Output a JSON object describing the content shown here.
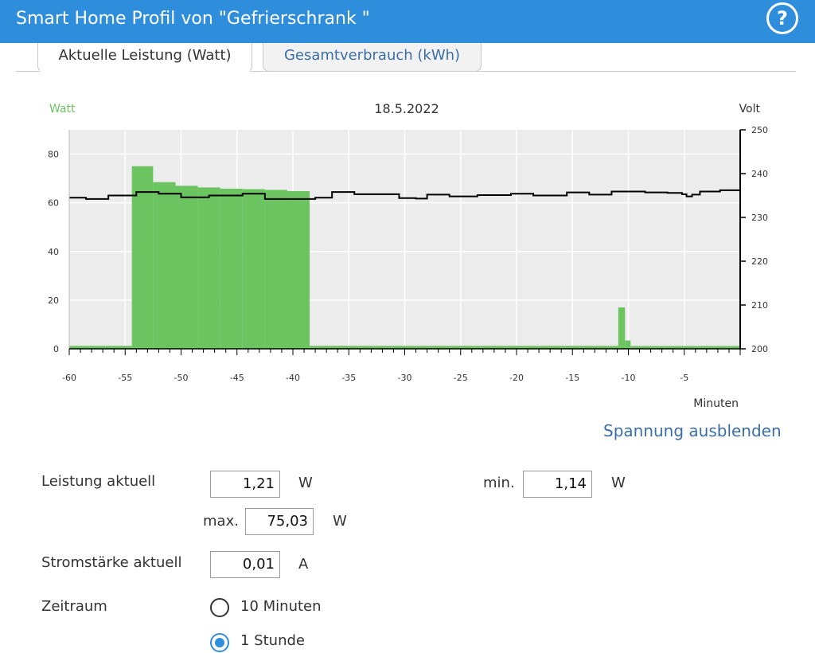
{
  "header": {
    "title": "Smart Home Profil von \"Gefrierschrank \"",
    "help_label": "?"
  },
  "tabs": [
    {
      "label": "Aktuelle Leistung (Watt)",
      "active": true
    },
    {
      "label": "Gesamtverbrauch (kWh)",
      "active": false
    }
  ],
  "colors": {
    "header": "#2f8edb",
    "bars": "#6cc461",
    "voltage_line": "#000000",
    "link": "#3a6ea8",
    "plot_bg": "#ececec"
  },
  "chart_data": {
    "type": "bar",
    "title": "18.5.2022",
    "ylabel": "Watt",
    "ylabel_right": "Volt",
    "xlabel": "Minuten",
    "xlim": [
      -60,
      0
    ],
    "ylim": [
      0,
      90
    ],
    "ylim_right": [
      200,
      250
    ],
    "x_ticks": [
      -60,
      -55,
      -50,
      -45,
      -40,
      -35,
      -30,
      -25,
      -20,
      -15,
      -10,
      -5
    ],
    "y_ticks": [
      0,
      20,
      40,
      60,
      80
    ],
    "y_ticks_right": [
      200,
      210,
      220,
      230,
      240,
      250
    ],
    "grid": true,
    "series": [
      {
        "name": "Watt",
        "type": "bar",
        "bars": [
          [
            -60,
            -54.4,
            1.2
          ],
          [
            -54.4,
            -52.5,
            75.03
          ],
          [
            -52.5,
            -50.5,
            68.5
          ],
          [
            -50.5,
            -48.5,
            67
          ],
          [
            -48.5,
            -46.5,
            66.3
          ],
          [
            -46.5,
            -44.5,
            65.8
          ],
          [
            -44.5,
            -42.5,
            65.6
          ],
          [
            -42.5,
            -40.5,
            65.3
          ],
          [
            -40.5,
            -38.5,
            64.8
          ],
          [
            -38.5,
            -10.9,
            1.21
          ],
          [
            -10.9,
            -10.3,
            17
          ],
          [
            -10.3,
            -9.8,
            3.4
          ],
          [
            -9.8,
            0,
            1.14
          ]
        ]
      },
      {
        "name": "Volt",
        "type": "step-line",
        "axis": "right",
        "points": [
          [
            -60,
            234.5
          ],
          [
            -58.5,
            234.2
          ],
          [
            -56.5,
            235
          ],
          [
            -54,
            235.8
          ],
          [
            -52,
            235.4
          ],
          [
            -50,
            234.6
          ],
          [
            -47.5,
            235
          ],
          [
            -44.5,
            235.4
          ],
          [
            -42.5,
            234.2
          ],
          [
            -39.2,
            234.2
          ],
          [
            -38,
            234.5
          ],
          [
            -36.5,
            235.8
          ],
          [
            -34.5,
            235.3
          ],
          [
            -30.5,
            234.4
          ],
          [
            -29,
            234.3
          ],
          [
            -28,
            235.2
          ],
          [
            -26,
            234.8
          ],
          [
            -23.5,
            235.1
          ],
          [
            -20.5,
            235.4
          ],
          [
            -18.5,
            235
          ],
          [
            -15.5,
            235.7
          ],
          [
            -13.5,
            235.2
          ],
          [
            -11.5,
            235.9
          ],
          [
            -8.5,
            235.7
          ],
          [
            -6.5,
            235.6
          ],
          [
            -5.2,
            235.3
          ],
          [
            -4.8,
            234.8
          ],
          [
            -4.3,
            235.2
          ],
          [
            -3.6,
            235.9
          ],
          [
            -1.8,
            236.2
          ],
          [
            0,
            236
          ]
        ]
      }
    ]
  },
  "toggle_voltage_label": "Spannung ausblenden",
  "readings": {
    "power_label": "Leistung aktuell",
    "power_value": "1,21",
    "power_unit": "W",
    "min_label": "min.",
    "min_value": "1,14",
    "min_unit": "W",
    "max_label": "max.",
    "max_value": "75,03",
    "max_unit": "W",
    "current_label": "Stromstärke aktuell",
    "current_value": "0,01",
    "current_unit": "A"
  },
  "period": {
    "label": "Zeitraum",
    "options": [
      {
        "label": "10 Minuten",
        "selected": false
      },
      {
        "label": "1 Stunde",
        "selected": true
      }
    ]
  }
}
